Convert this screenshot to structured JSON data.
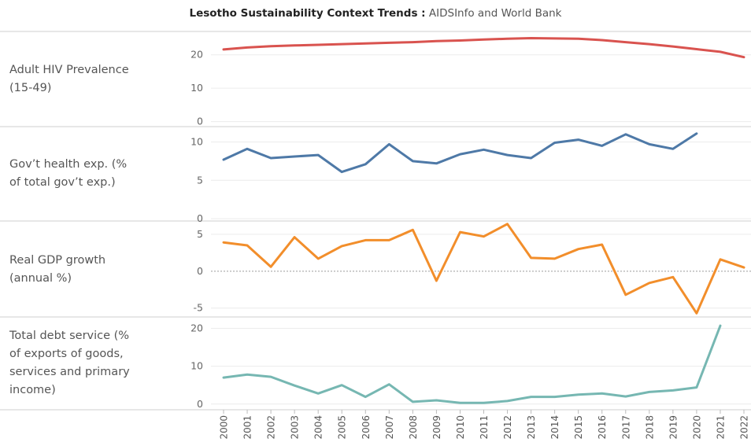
{
  "title": {
    "bold": "Lesotho Sustainability Context Trends :",
    "source": "AIDSInfo and World Bank"
  },
  "colors": {
    "hiv": "#d9534f",
    "health": "#4e79a7",
    "gdp": "#f28e2b",
    "debt": "#76b7b2"
  },
  "chart_data": [
    {
      "type": "line",
      "ylabel": "Adult HIV Prevalence (15-49)",
      "yticks": [
        0,
        10,
        20
      ],
      "ylim": [
        -1.5,
        27
      ],
      "x": [
        2000,
        2001,
        2002,
        2003,
        2004,
        2005,
        2006,
        2007,
        2008,
        2009,
        2010,
        2011,
        2012,
        2013,
        2014,
        2015,
        2016,
        2017,
        2018,
        2019,
        2020,
        2021,
        2022
      ],
      "series": [
        {
          "values": [
            21.6,
            22.2,
            22.6,
            22.8,
            23.0,
            23.2,
            23.4,
            23.6,
            23.8,
            24.1,
            24.3,
            24.6,
            24.8,
            25.0,
            24.9,
            24.8,
            24.4,
            23.8,
            23.2,
            22.5,
            21.7,
            20.9,
            19.3
          ]
        }
      ]
    },
    {
      "type": "line",
      "ylabel": "Gov’t health exp. (% of total gov’t exp.)",
      "yticks": [
        0,
        5,
        10
      ],
      "ylim": [
        -0.3,
        12
      ],
      "x": [
        2000,
        2001,
        2002,
        2003,
        2004,
        2005,
        2006,
        2007,
        2008,
        2009,
        2010,
        2011,
        2012,
        2013,
        2014,
        2015,
        2016,
        2017,
        2018,
        2019,
        2020
      ],
      "series": [
        {
          "values": [
            7.7,
            9.1,
            7.9,
            8.1,
            8.3,
            6.1,
            7.1,
            9.7,
            7.5,
            7.2,
            8.4,
            9.0,
            8.3,
            7.9,
            9.9,
            10.3,
            9.5,
            11.0,
            9.7,
            9.1,
            11.1
          ]
        }
      ]
    },
    {
      "type": "line",
      "ylabel": "Real GDP growth (annual %)",
      "yticks": [
        -5,
        0,
        5
      ],
      "ylim": [
        -6.2,
        6.8
      ],
      "zero_line": true,
      "x": [
        2000,
        2001,
        2002,
        2003,
        2004,
        2005,
        2006,
        2007,
        2008,
        2009,
        2010,
        2011,
        2012,
        2013,
        2014,
        2015,
        2016,
        2017,
        2018,
        2019,
        2020,
        2021,
        2022
      ],
      "series": [
        {
          "values": [
            3.9,
            3.5,
            0.6,
            4.6,
            1.7,
            3.4,
            4.2,
            4.2,
            5.6,
            -1.3,
            5.3,
            4.7,
            6.4,
            1.8,
            1.7,
            3.0,
            3.6,
            -3.2,
            -1.6,
            -0.8,
            -5.7,
            1.6,
            0.5
          ]
        }
      ]
    },
    {
      "type": "line",
      "ylabel": "Total debt service (% of exports of goods, services and primary income)",
      "yticks": [
        0,
        10,
        20
      ],
      "ylim": [
        -1.5,
        23
      ],
      "x": [
        2000,
        2001,
        2002,
        2003,
        2004,
        2005,
        2006,
        2007,
        2008,
        2009,
        2010,
        2011,
        2012,
        2013,
        2014,
        2015,
        2016,
        2017,
        2018,
        2019,
        2020,
        2021
      ],
      "series": [
        {
          "values": [
            7.0,
            7.8,
            7.2,
            4.9,
            2.8,
            5.0,
            1.9,
            5.2,
            0.6,
            1.0,
            0.3,
            0.3,
            0.8,
            1.9,
            1.9,
            2.5,
            2.8,
            2.0,
            3.2,
            3.6,
            4.4,
            20.7
          ]
        }
      ]
    }
  ],
  "row_labels": [
    [
      "Adult HIV Prevalence",
      "(15-49)"
    ],
    [
      "Gov’t health exp. (%",
      "of total gov’t exp.)"
    ],
    [
      "Real GDP growth",
      "(annual %)"
    ],
    [
      "Total debt service (%",
      "of exports of goods,",
      "services and primary",
      "income)"
    ]
  ],
  "x_tick_labels": [
    "2000",
    "2001",
    "2002",
    "2003",
    "2004",
    "2005",
    "2006",
    "2007",
    "2008",
    "2009",
    "2010",
    "2011",
    "2012",
    "2013",
    "2014",
    "2015",
    "2016",
    "2017",
    "2018",
    "2019",
    "2020",
    "2021",
    "2022"
  ]
}
